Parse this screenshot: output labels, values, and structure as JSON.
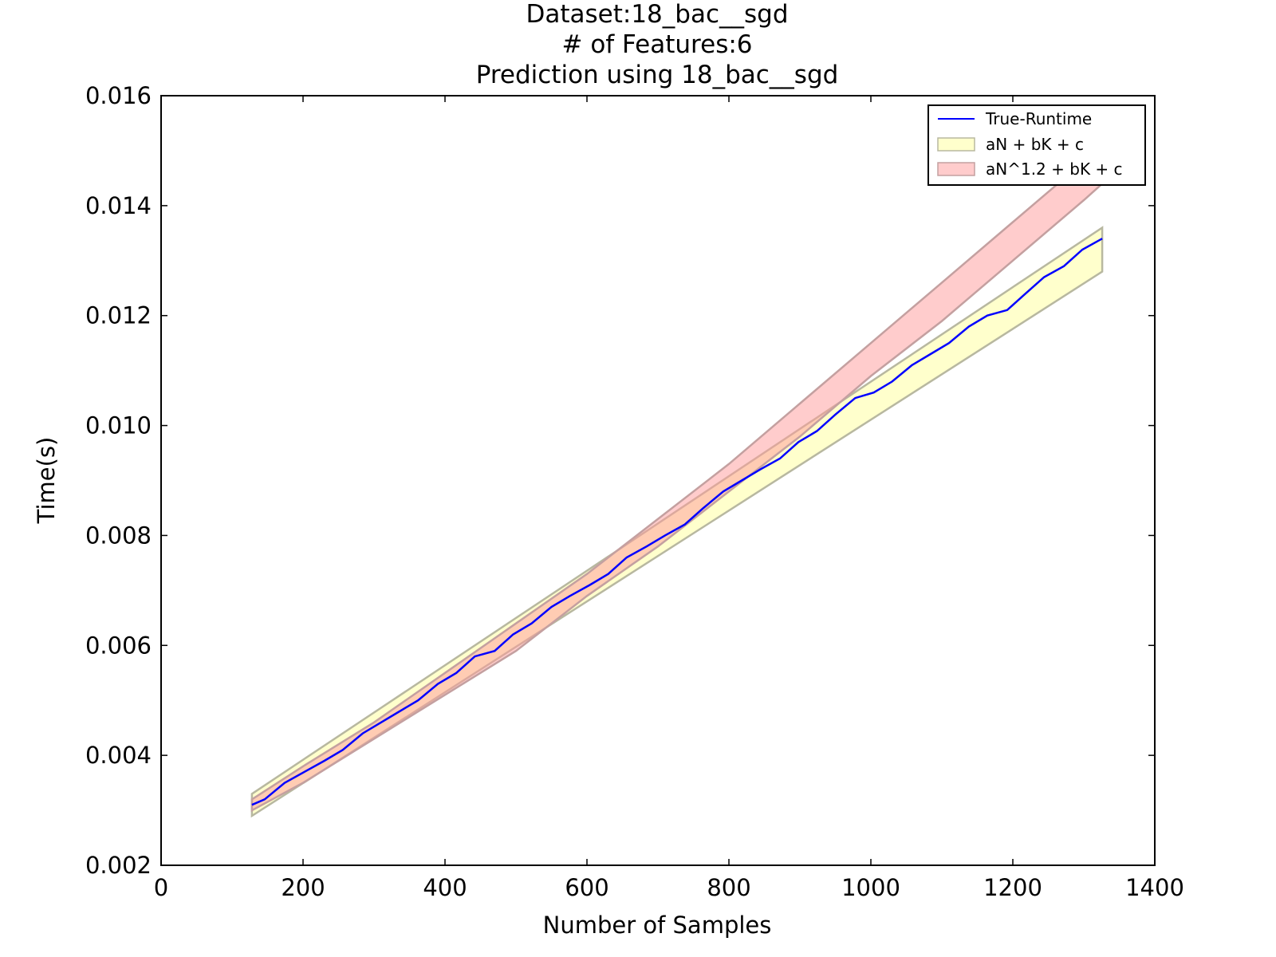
{
  "chart_data": {
    "type": "line",
    "title_lines": [
      "Dataset:18_bac__sgd",
      "# of Features:6",
      "Prediction using 18_bac__sgd"
    ],
    "xlabel": "Number of Samples",
    "ylabel": "Time(s)",
    "xlim": [
      0,
      1400
    ],
    "ylim": [
      0.002,
      0.016
    ],
    "xticks": [
      0,
      200,
      400,
      600,
      800,
      1000,
      1200,
      1400
    ],
    "xtick_labels": [
      "0",
      "200",
      "400",
      "600",
      "800",
      "1000",
      "1200",
      "1400"
    ],
    "yticks": [
      0.002,
      0.004,
      0.006,
      0.008,
      0.01,
      0.012,
      0.014,
      0.016
    ],
    "ytick_labels": [
      "0.002",
      "0.004",
      "0.006",
      "0.008",
      "0.010",
      "0.012",
      "0.014",
      "0.016"
    ],
    "grid": false,
    "legend_position": "top-right",
    "series": [
      {
        "name": "True-Runtime",
        "kind": "line",
        "color": "#0000ff",
        "x": [
          128,
          146,
          174,
          202,
          230,
          256,
          284,
          310,
          336,
          362,
          390,
          416,
          442,
          470,
          496,
          522,
          550,
          576,
          604,
          630,
          656,
          684,
          710,
          738,
          764,
          792,
          818,
          844,
          872,
          898,
          924,
          950,
          978,
          1004,
          1030,
          1058,
          1084,
          1110,
          1138,
          1164,
          1192,
          1218,
          1244,
          1272,
          1298,
          1326
        ],
        "y": [
          0.0031,
          0.0032,
          0.0035,
          0.0037,
          0.0039,
          0.0041,
          0.0044,
          0.0046,
          0.0048,
          0.005,
          0.0053,
          0.0055,
          0.0058,
          0.0059,
          0.0062,
          0.0064,
          0.0067,
          0.0069,
          0.0071,
          0.0073,
          0.0076,
          0.0078,
          0.008,
          0.0082,
          0.0085,
          0.0088,
          0.009,
          0.0092,
          0.0094,
          0.0097,
          0.0099,
          0.0102,
          0.0105,
          0.0106,
          0.0108,
          0.0111,
          0.0113,
          0.0115,
          0.0118,
          0.012,
          0.0121,
          0.0124,
          0.0127,
          0.0129,
          0.0132,
          0.0134
        ]
      },
      {
        "name": "aN + bK + c",
        "kind": "band",
        "color": "#ffff99",
        "edge_color": "#b8b8a0",
        "x": [
          128,
          1326
        ],
        "lower": [
          0.0029,
          0.0128
        ],
        "upper": [
          0.0033,
          0.0136
        ]
      },
      {
        "name": "aN^1.2 + bK + c",
        "kind": "band",
        "color": "#ff9999",
        "edge_color": "#c4a0a0",
        "x": [
          128,
          200,
          300,
          400,
          500,
          600,
          700,
          800,
          900,
          1000,
          1100,
          1200,
          1300,
          1326
        ],
        "lower": [
          0.003,
          0.0035,
          0.0043,
          0.0051,
          0.0059,
          0.0069,
          0.0078,
          0.0088,
          0.0098,
          0.0109,
          0.0119,
          0.013,
          0.0141,
          0.0144
        ],
        "upper": [
          0.0032,
          0.0038,
          0.0046,
          0.0055,
          0.0064,
          0.0073,
          0.0083,
          0.0093,
          0.0104,
          0.0115,
          0.0126,
          0.0137,
          0.0148,
          0.0151
        ]
      }
    ]
  }
}
